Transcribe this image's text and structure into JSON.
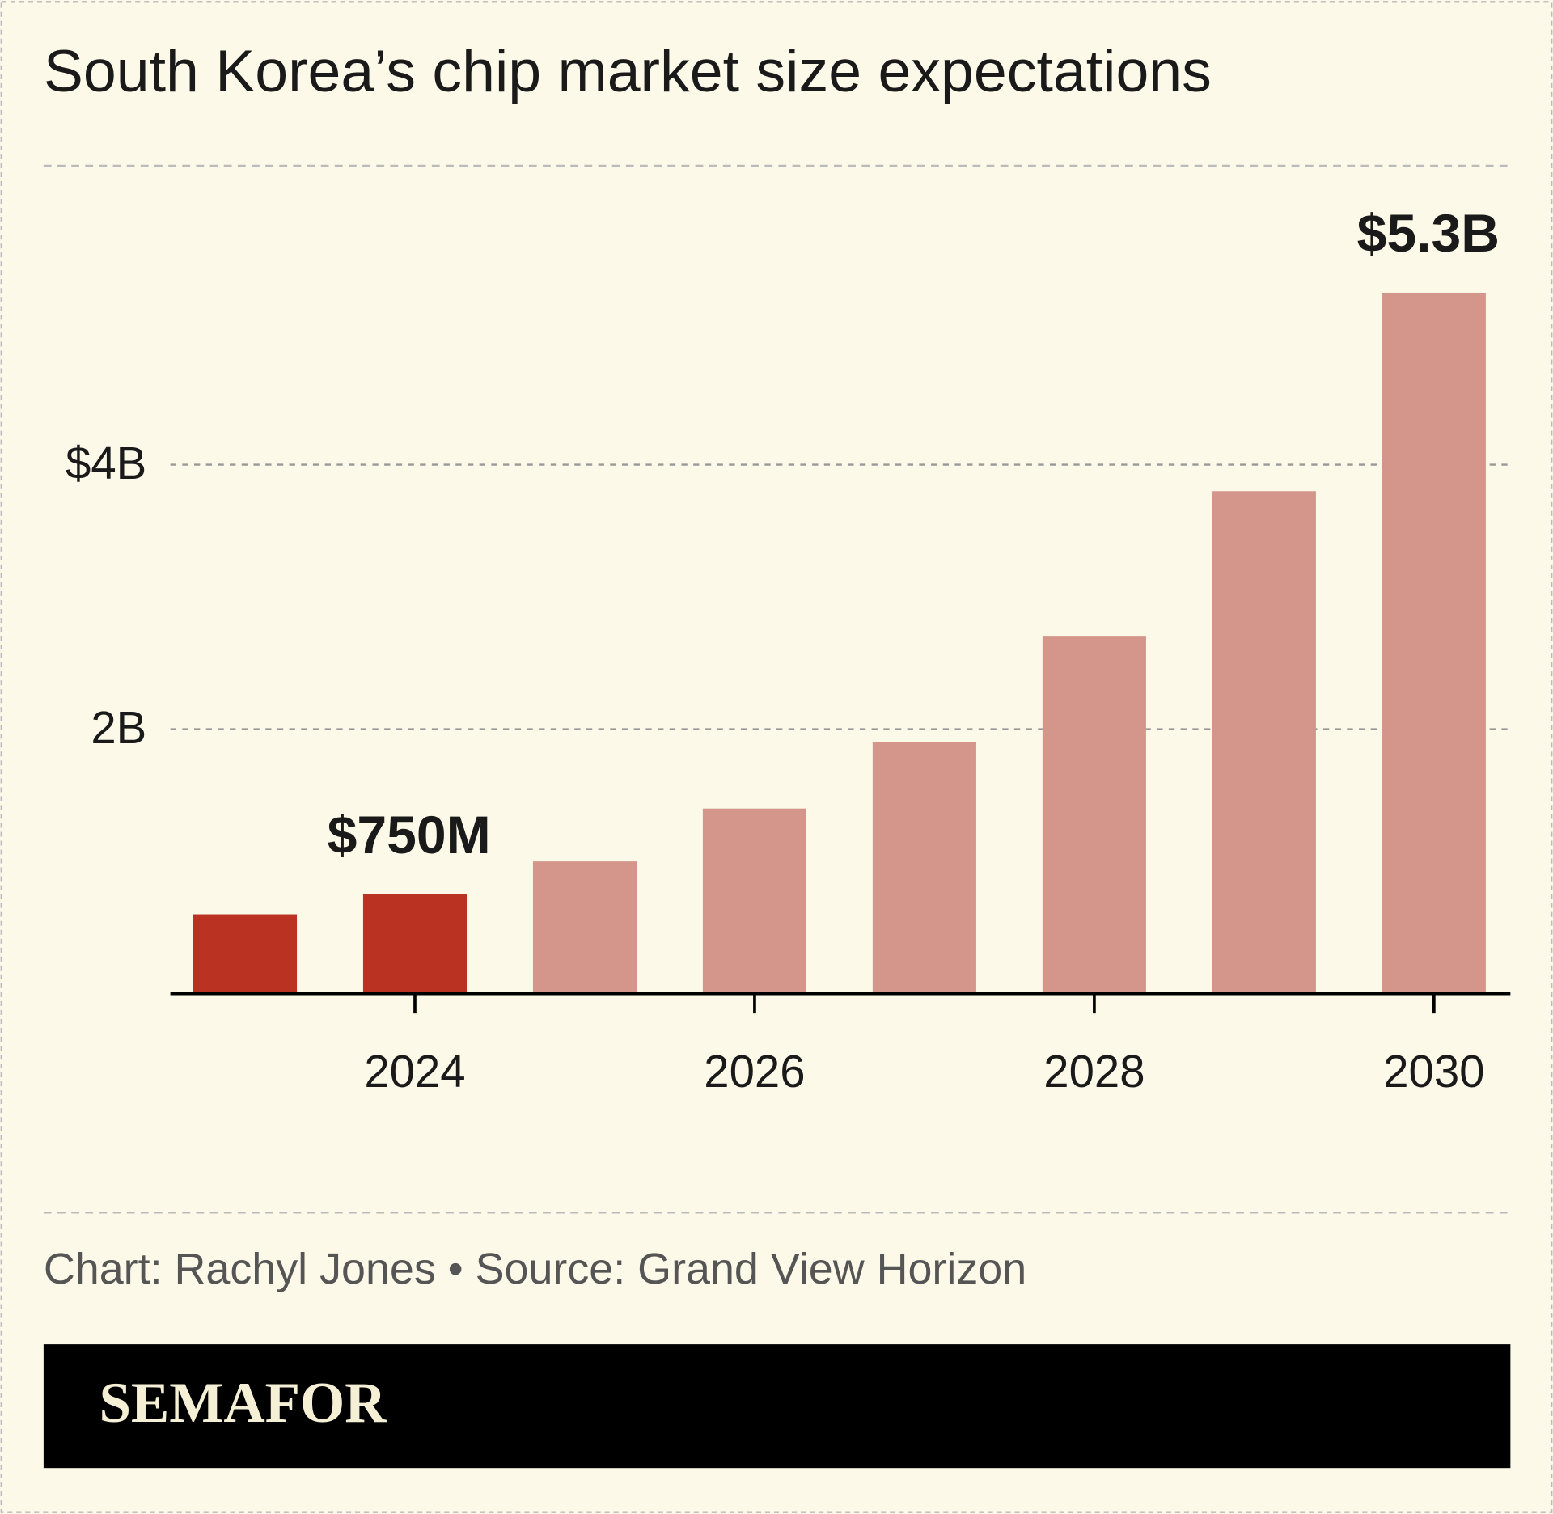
{
  "chart_data": {
    "type": "bar",
    "title": "South Korea’s chip market size expectations",
    "x": [
      2023,
      2024,
      2025,
      2026,
      2027,
      2028,
      2029,
      2030
    ],
    "values": [
      0.6,
      0.75,
      1.0,
      1.4,
      1.9,
      2.7,
      3.8,
      5.3
    ],
    "value_labels": [
      null,
      "$750M",
      null,
      null,
      null,
      null,
      null,
      "$5.3B"
    ],
    "colors": [
      "#b93222",
      "#b93222",
      "#d4968a",
      "#d4968a",
      "#d4968a",
      "#d4968a",
      "#d4968a",
      "#d4968a"
    ],
    "xlim": [
      2022.56,
      2030.45
    ],
    "xticks": [
      2024,
      2026,
      2028,
      2030
    ],
    "ylim": [
      0,
      6.26
    ],
    "yticks": [
      {
        "value": 2,
        "label": "2B"
      },
      {
        "value": 4,
        "label": "$4B"
      }
    ],
    "grid": true,
    "footer": "Chart: Rachyl Jones • Source: Grand View Horizon",
    "brand": "SEMAFOR"
  }
}
